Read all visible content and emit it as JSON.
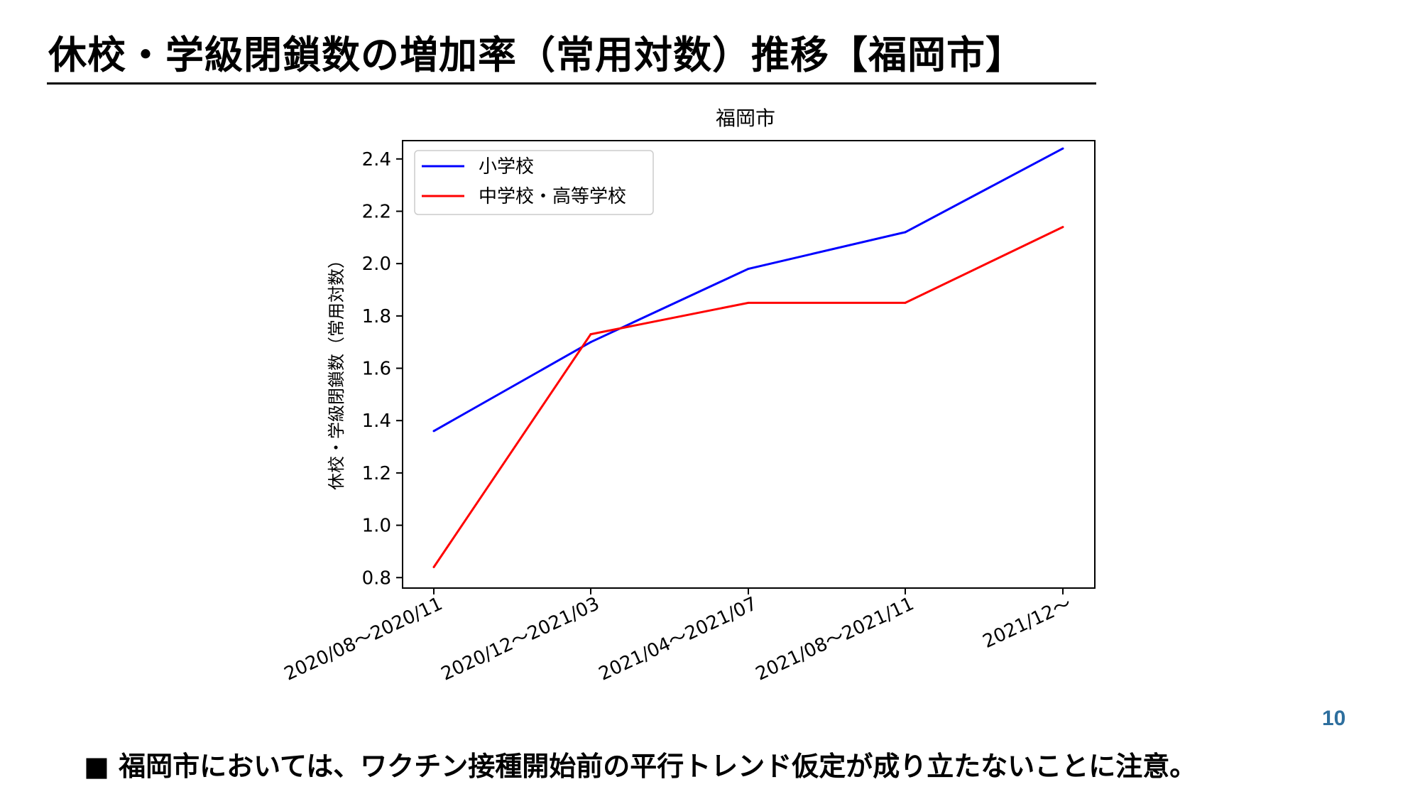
{
  "slide": {
    "title": "休校・学級閉鎖数の増加率（常用対数）推移【福岡市】",
    "page_number": "10",
    "note": "■ 福岡市においては、ワクチン接種開始前の平行トレンド仮定が成り立たないことに注意。"
  },
  "chart_data": {
    "type": "line",
    "title": "福岡市",
    "xlabel": "",
    "ylabel": "休校・学級閉鎖数（常用対数）",
    "categories": [
      "2020/08～2020/11",
      "2020/12～2021/03",
      "2021/04～2021/07",
      "2021/08～2021/11",
      "2021/12～"
    ],
    "ylim": [
      0.76,
      2.47
    ],
    "yticks": [
      0.8,
      1.0,
      1.2,
      1.4,
      1.6,
      1.8,
      2.0,
      2.2,
      2.4
    ],
    "ytick_labels": [
      "0.8",
      "1.0",
      "1.2",
      "1.4",
      "1.6",
      "1.8",
      "2.0",
      "2.2",
      "2.4"
    ],
    "grid": false,
    "legend_position": "top-left",
    "series": [
      {
        "name": "小学校",
        "color": "#0000ff",
        "values": [
          1.36,
          1.7,
          1.98,
          2.12,
          2.44
        ]
      },
      {
        "name": "中学校・高等学校",
        "color": "#ff0000",
        "values": [
          0.84,
          1.73,
          1.85,
          1.85,
          2.14
        ]
      }
    ]
  }
}
